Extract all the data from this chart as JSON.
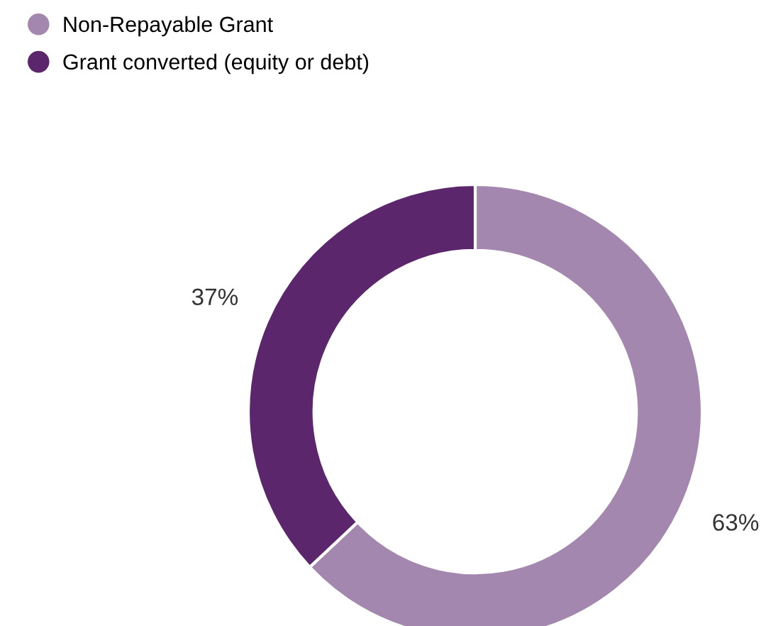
{
  "chart_data": {
    "type": "donut",
    "categories": [
      "Non-Repayable Grant",
      "Grant converted (equity or debt)"
    ],
    "values": [
      63,
      37
    ],
    "colors": [
      "#a487ae",
      "#5b266c"
    ],
    "value_labels": [
      "63%",
      "37%"
    ],
    "legend": "top left"
  }
}
